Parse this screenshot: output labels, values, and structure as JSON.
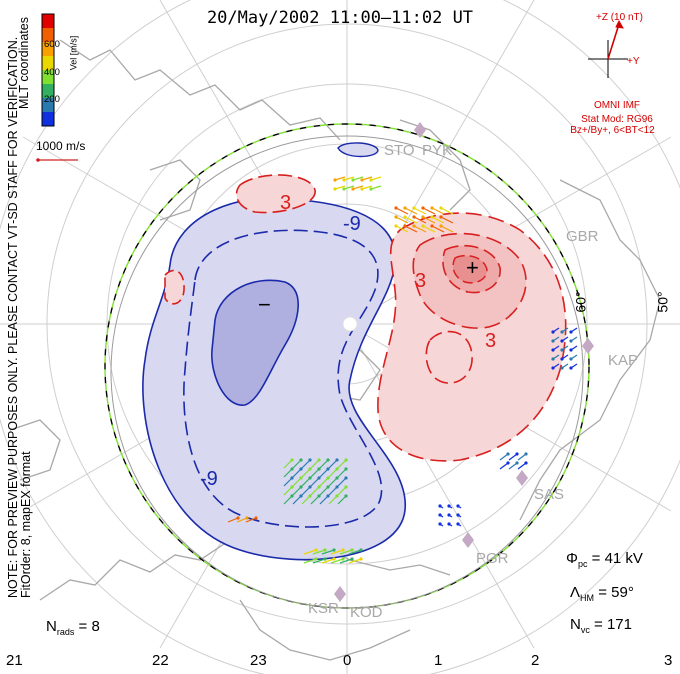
{
  "title": "20/May/2002 11:00–11:02 UT",
  "side_note": "NOTE: FOR PREVIEW PURPOSES ONLY. PLEASE CONTACT VT-SD STAFF FOR VERIFICATION.",
  "fit_note": "FitOrder: 8, mapEX format",
  "coord_label": "MLT coordinates",
  "colorbar": {
    "title": "Vel [m/s]",
    "ticks": [
      "600",
      "400",
      "200"
    ],
    "colors": [
      "#e00000",
      "#f06000",
      "#f7a000",
      "#e8d800",
      "#80e030",
      "#30b060",
      "#2a7ab0",
      "#1030e0"
    ]
  },
  "scale_vector": {
    "label": "1000 m/s",
    "color": "#d02020"
  },
  "imf": {
    "z_label": "+Z (10 nT)",
    "y_label": "+Y",
    "source": "OMNI IMF",
    "model": "Stat Mod: RG96",
    "condition": "Bz+/By+, 6<BT<12",
    "color": "#d40000"
  },
  "stats": {
    "phi_symbol": "Φ",
    "phi_sub": "pc",
    "phi_value": "= 41 kV",
    "lambda_symbol": "Λ",
    "lambda_sub": "HM",
    "lambda_value": "= 59°",
    "nvc_symbol": "N",
    "nvc_sub": "vc",
    "nvc_value": "= 171",
    "nrads_symbol": "N",
    "nrads_sub": "rads",
    "nrads_value": "= 8"
  },
  "mlt_ticks": [
    "21",
    "22",
    "23",
    "0",
    "1",
    "2",
    "3"
  ],
  "latitude_labels": [
    "60°",
    "50°"
  ],
  "stations": [
    "STO",
    "PYK",
    "GBR",
    "KAP",
    "SAS",
    "PGR",
    "KSR",
    "KOD"
  ],
  "contours": {
    "positive_color": "#d82020",
    "negative_color": "#1a2aaa",
    "positive_fill": "#f6d6d6",
    "negative_fill": "#d8d8f0",
    "labels": [
      "-9",
      "-9",
      "3",
      "3",
      "3"
    ],
    "min_marker": "−",
    "max_marker": "+"
  },
  "heppner_maynard_boundary": {
    "latitude": 59,
    "colors": [
      "#000000",
      "#80e030"
    ]
  }
}
